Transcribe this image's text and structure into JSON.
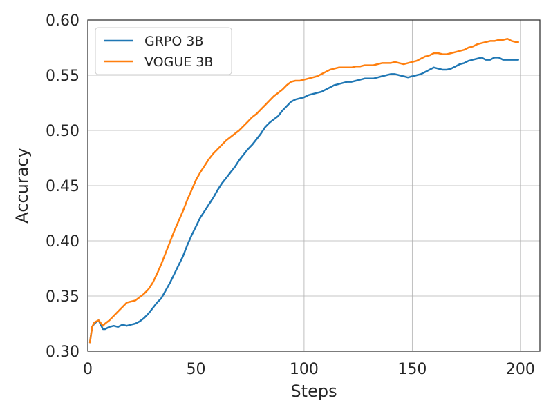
{
  "chart_data": {
    "type": "line",
    "title": "",
    "xlabel": "Steps",
    "ylabel": "Accuracy",
    "xlim": [
      0,
      209
    ],
    "ylim": [
      0.3,
      0.6
    ],
    "xticks": [
      0,
      50,
      100,
      150,
      200
    ],
    "yticks": [
      0.3,
      0.35,
      0.4,
      0.45,
      0.5,
      0.55,
      0.6
    ],
    "xtick_labels": [
      "0",
      "50",
      "100",
      "150",
      "200"
    ],
    "ytick_labels": [
      "0.30",
      "0.35",
      "0.40",
      "0.45",
      "0.50",
      "0.55",
      "0.60"
    ],
    "grid": true,
    "legend_position": "top-left",
    "series": [
      {
        "name": "GRPO 3B",
        "color": "#1f77b4",
        "x": [
          1,
          2,
          3,
          5,
          7,
          8,
          10,
          12,
          14,
          16,
          18,
          20,
          22,
          24,
          26,
          28,
          30,
          32,
          34,
          36,
          38,
          40,
          42,
          44,
          46,
          48,
          50,
          52,
          54,
          56,
          58,
          60,
          62,
          64,
          66,
          68,
          70,
          72,
          74,
          76,
          78,
          80,
          82,
          84,
          86,
          88,
          90,
          92,
          94,
          96,
          98,
          100,
          102,
          104,
          106,
          108,
          110,
          112,
          114,
          116,
          118,
          120,
          122,
          124,
          126,
          128,
          130,
          132,
          134,
          136,
          138,
          140,
          142,
          144,
          146,
          148,
          150,
          152,
          154,
          156,
          158,
          160,
          162,
          164,
          166,
          168,
          170,
          172,
          174,
          176,
          178,
          180,
          182,
          184,
          186,
          188,
          190,
          192,
          194,
          196,
          198,
          199
        ],
        "values": [
          0.308,
          0.322,
          0.325,
          0.328,
          0.32,
          0.32,
          0.322,
          0.323,
          0.322,
          0.324,
          0.323,
          0.324,
          0.325,
          0.327,
          0.33,
          0.334,
          0.339,
          0.344,
          0.348,
          0.355,
          0.362,
          0.37,
          0.378,
          0.386,
          0.396,
          0.405,
          0.413,
          0.421,
          0.427,
          0.433,
          0.439,
          0.446,
          0.452,
          0.457,
          0.462,
          0.467,
          0.473,
          0.478,
          0.483,
          0.487,
          0.492,
          0.497,
          0.503,
          0.507,
          0.51,
          0.513,
          0.518,
          0.522,
          0.526,
          0.528,
          0.529,
          0.53,
          0.532,
          0.533,
          0.534,
          0.535,
          0.537,
          0.539,
          0.541,
          0.542,
          0.543,
          0.544,
          0.544,
          0.545,
          0.546,
          0.547,
          0.547,
          0.547,
          0.548,
          0.549,
          0.55,
          0.551,
          0.551,
          0.55,
          0.549,
          0.548,
          0.549,
          0.55,
          0.551,
          0.553,
          0.555,
          0.557,
          0.556,
          0.555,
          0.555,
          0.556,
          0.558,
          0.56,
          0.561,
          0.563,
          0.564,
          0.565,
          0.566,
          0.564,
          0.564,
          0.566,
          0.566,
          0.564,
          0.564,
          0.564,
          0.564,
          0.564
        ]
      },
      {
        "name": "VOGUE 3B",
        "color": "#ff7f0e",
        "x": [
          1,
          2,
          3,
          5,
          7,
          8,
          10,
          12,
          14,
          16,
          18,
          20,
          22,
          24,
          26,
          28,
          30,
          32,
          34,
          36,
          38,
          40,
          42,
          44,
          46,
          48,
          50,
          52,
          54,
          56,
          58,
          60,
          62,
          64,
          66,
          68,
          70,
          72,
          74,
          76,
          78,
          80,
          82,
          84,
          86,
          88,
          90,
          92,
          94,
          96,
          98,
          100,
          102,
          104,
          106,
          108,
          110,
          112,
          114,
          116,
          118,
          120,
          122,
          124,
          126,
          128,
          130,
          132,
          134,
          136,
          138,
          140,
          142,
          144,
          146,
          148,
          150,
          152,
          154,
          156,
          158,
          160,
          162,
          164,
          166,
          168,
          170,
          172,
          174,
          176,
          178,
          180,
          182,
          184,
          186,
          188,
          190,
          192,
          194,
          196,
          198,
          199
        ],
        "values": [
          0.308,
          0.322,
          0.326,
          0.328,
          0.323,
          0.325,
          0.328,
          0.332,
          0.336,
          0.34,
          0.344,
          0.345,
          0.346,
          0.349,
          0.352,
          0.356,
          0.362,
          0.37,
          0.379,
          0.389,
          0.399,
          0.409,
          0.418,
          0.427,
          0.437,
          0.446,
          0.455,
          0.462,
          0.468,
          0.474,
          0.479,
          0.483,
          0.487,
          0.491,
          0.494,
          0.497,
          0.5,
          0.504,
          0.508,
          0.512,
          0.515,
          0.519,
          0.523,
          0.527,
          0.531,
          0.534,
          0.537,
          0.541,
          0.544,
          0.545,
          0.545,
          0.546,
          0.547,
          0.548,
          0.549,
          0.551,
          0.553,
          0.555,
          0.556,
          0.557,
          0.557,
          0.557,
          0.557,
          0.558,
          0.558,
          0.559,
          0.559,
          0.559,
          0.56,
          0.561,
          0.561,
          0.561,
          0.562,
          0.561,
          0.56,
          0.561,
          0.562,
          0.563,
          0.565,
          0.567,
          0.568,
          0.57,
          0.57,
          0.569,
          0.569,
          0.57,
          0.571,
          0.572,
          0.573,
          0.575,
          0.576,
          0.578,
          0.579,
          0.58,
          0.581,
          0.581,
          0.582,
          0.582,
          0.583,
          0.581,
          0.58,
          0.58
        ]
      }
    ]
  }
}
